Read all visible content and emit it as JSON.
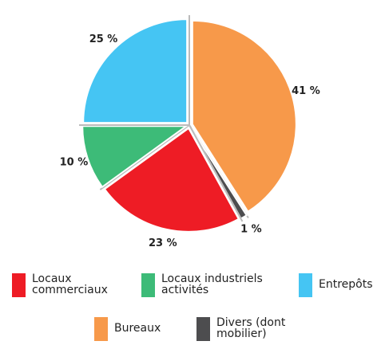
{
  "chart_data": {
    "type": "pie",
    "categories": [
      "Locaux commerciaux",
      "Locaux industriels activités",
      "Entrepôts",
      "Bureaux",
      "Divers (dont mobilier)"
    ],
    "values": [
      23,
      10,
      25,
      41,
      1
    ],
    "value_labels": [
      "23 %",
      "10 %",
      "25 %",
      "41 %",
      "1 %"
    ],
    "colors": [
      "#ee1c25",
      "#3dbb78",
      "#45c5f3",
      "#f7994a",
      "#4d4d4f"
    ]
  }
}
